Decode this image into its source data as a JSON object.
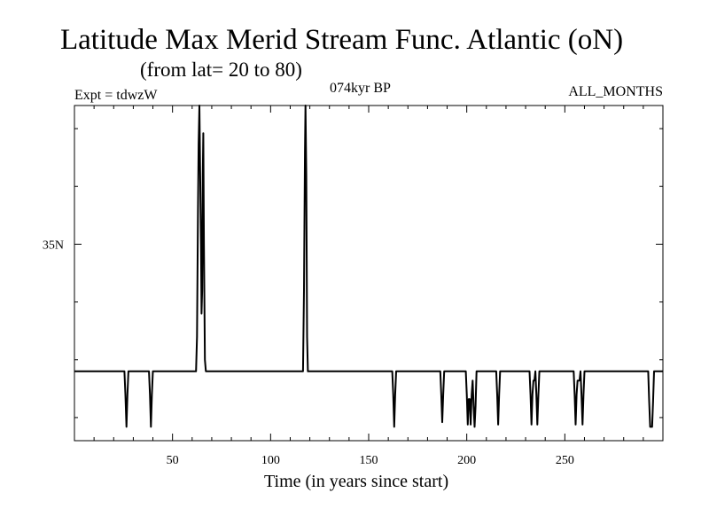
{
  "chart_data": {
    "type": "line",
    "title": "Latitude Max Merid Stream Func. Atlantic (oN)",
    "subtitle": "(from lat= 20 to 80)",
    "expt_label": "Expt = tdwzW",
    "period_label": "074kyr BP",
    "months_label": "ALL_MONTHS",
    "xlabel": "Time (in years since start)",
    "ylabel": "",
    "xlim": [
      0,
      300
    ],
    "ylim": [
      26.5,
      41
    ],
    "x_ticks": [
      50,
      100,
      150,
      200,
      250
    ],
    "x_tick_labels": [
      "50",
      "100",
      "150",
      "200",
      "250"
    ],
    "y_ticks": [
      35
    ],
    "y_tick_labels": [
      "35N"
    ],
    "grid": false,
    "line_color": "#000000",
    "series": [
      {
        "values": [
          [
            0,
            29.5
          ],
          [
            25.5,
            29.5
          ],
          [
            26,
            28.5
          ],
          [
            26.5,
            27.1
          ],
          [
            27,
            28.5
          ],
          [
            27.5,
            29.5
          ],
          [
            38,
            29.5
          ],
          [
            38.5,
            28.5
          ],
          [
            39,
            27.1
          ],
          [
            39.5,
            28.5
          ],
          [
            40,
            29.5
          ],
          [
            62,
            29.5
          ],
          [
            62.5,
            31
          ],
          [
            63,
            36.5
          ],
          [
            63.3,
            39.3
          ],
          [
            63.7,
            41
          ],
          [
            64.1,
            38
          ],
          [
            64.5,
            35
          ],
          [
            64.8,
            32
          ],
          [
            65.1,
            33
          ],
          [
            65.4,
            38
          ],
          [
            65.7,
            39.8
          ],
          [
            66,
            35
          ],
          [
            66.5,
            30
          ],
          [
            67,
            29.5
          ],
          [
            116.5,
            29.5
          ],
          [
            117,
            33
          ],
          [
            117.5,
            39
          ],
          [
            117.8,
            41
          ],
          [
            118.2,
            38
          ],
          [
            118.6,
            31
          ],
          [
            119,
            29.5
          ],
          [
            162,
            29.5
          ],
          [
            162.5,
            28.5
          ],
          [
            163,
            27.1
          ],
          [
            163.5,
            28.5
          ],
          [
            164,
            29.5
          ],
          [
            186.5,
            29.5
          ],
          [
            187,
            28.5
          ],
          [
            187.5,
            27.3
          ],
          [
            188,
            28.5
          ],
          [
            188.5,
            29.5
          ],
          [
            199.5,
            29.5
          ],
          [
            200,
            28.5
          ],
          [
            200.5,
            27.2
          ],
          [
            201,
            28.3
          ],
          [
            201.5,
            28.3
          ],
          [
            202,
            27.2
          ],
          [
            202.5,
            28.5
          ],
          [
            203,
            29.1
          ],
          [
            203.5,
            28
          ],
          [
            204,
            27.1
          ],
          [
            204.5,
            28
          ],
          [
            205,
            29.5
          ],
          [
            215,
            29.5
          ],
          [
            215.5,
            28.5
          ],
          [
            216,
            27.2
          ],
          [
            216.5,
            28.5
          ],
          [
            217,
            29.5
          ],
          [
            232,
            29.5
          ],
          [
            232.5,
            28.5
          ],
          [
            233,
            27.2
          ],
          [
            233.5,
            28.5
          ],
          [
            234,
            29.1
          ],
          [
            234.5,
            29.1
          ],
          [
            235,
            29.5
          ],
          [
            235.5,
            28.5
          ],
          [
            236,
            27.2
          ],
          [
            236.5,
            28.5
          ],
          [
            237,
            29.5
          ],
          [
            254.5,
            29.5
          ],
          [
            255,
            28.5
          ],
          [
            255.5,
            27.2
          ],
          [
            256,
            28.5
          ],
          [
            256.5,
            29.1
          ],
          [
            257.5,
            29.1
          ],
          [
            258,
            29.5
          ],
          [
            258.5,
            28.5
          ],
          [
            259,
            27.2
          ],
          [
            259.5,
            28.5
          ],
          [
            260,
            29.5
          ],
          [
            292.5,
            29.5
          ],
          [
            293,
            28.2
          ],
          [
            293.5,
            27.1
          ],
          [
            294.5,
            27.1
          ],
          [
            295,
            28.2
          ],
          [
            295.5,
            29.5
          ],
          [
            300,
            29.5
          ]
        ]
      }
    ]
  }
}
